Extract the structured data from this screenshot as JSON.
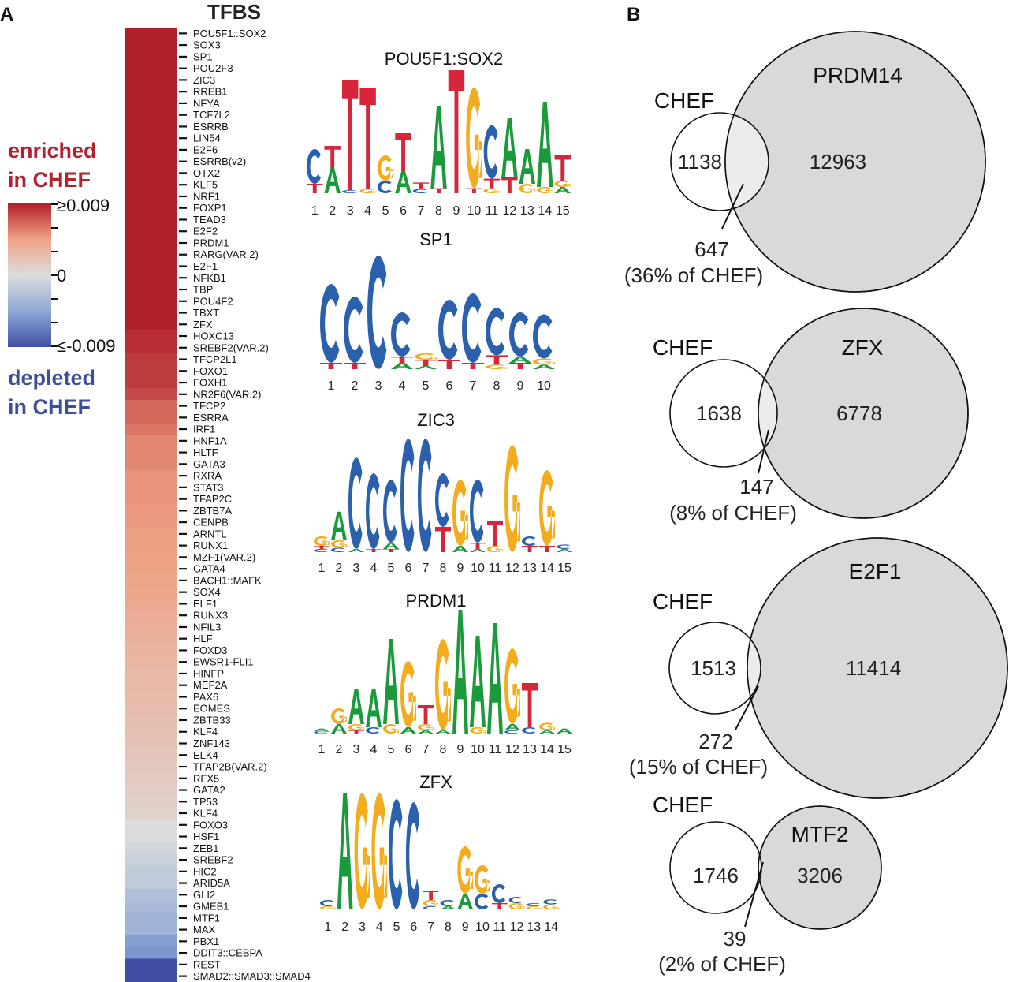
{
  "panel_a": {
    "label": "A",
    "heatmap_title": "TFBS",
    "legend": {
      "enriched_line1": "enriched",
      "enriched_line2": "in CHEF",
      "depleted_line1": "depleted",
      "depleted_line2": "in CHEF",
      "max_label": "≥0.009",
      "mid_label": "0",
      "min_label": "≤-0.009",
      "enriched_color": "#b22330",
      "depleted_color": "#3e4f96"
    }
  },
  "chart_data": {
    "type": "heatmap",
    "title": "TFBS",
    "value_range": [
      -0.009,
      0.009
    ],
    "colormap": [
      "#3f4fa3",
      "#8fa9d8",
      "#dcdcdc",
      "#efa385",
      "#b11f2a"
    ],
    "rows": [
      {
        "name": "POU5F1::SOX2",
        "value": 0.009
      },
      {
        "name": "SOX3",
        "value": 0.009
      },
      {
        "name": "SP1",
        "value": 0.009
      },
      {
        "name": "POU2F3",
        "value": 0.009
      },
      {
        "name": "ZIC3",
        "value": 0.009
      },
      {
        "name": "RREB1",
        "value": 0.009
      },
      {
        "name": "NFYA",
        "value": 0.009
      },
      {
        "name": "TCF7L2",
        "value": 0.009
      },
      {
        "name": "ESRRB",
        "value": 0.009
      },
      {
        "name": "LIN54",
        "value": 0.009
      },
      {
        "name": "E2F6",
        "value": 0.009
      },
      {
        "name": "ESRRB(v2)",
        "value": 0.009
      },
      {
        "name": "OTX2",
        "value": 0.009
      },
      {
        "name": "KLF5",
        "value": 0.009
      },
      {
        "name": "NRF1",
        "value": 0.009
      },
      {
        "name": "FOXP1",
        "value": 0.009
      },
      {
        "name": "TEAD3",
        "value": 0.009
      },
      {
        "name": "E2F2",
        "value": 0.009
      },
      {
        "name": "PRDM1",
        "value": 0.009
      },
      {
        "name": "RARG(VAR.2)",
        "value": 0.009
      },
      {
        "name": "E2F1",
        "value": 0.009
      },
      {
        "name": "NFKB1",
        "value": 0.009
      },
      {
        "name": "TBP",
        "value": 0.009
      },
      {
        "name": "POU4F2",
        "value": 0.009
      },
      {
        "name": "TBXT",
        "value": 0.009
      },
      {
        "name": "ZFX",
        "value": 0.009
      },
      {
        "name": "HOXC13",
        "value": 0.0085
      },
      {
        "name": "SREBF2(VAR.2)",
        "value": 0.0085
      },
      {
        "name": "TFCP2L1",
        "value": 0.008
      },
      {
        "name": "FOXO1",
        "value": 0.008
      },
      {
        "name": "FOXH1",
        "value": 0.008
      },
      {
        "name": "NR2F6(VAR.2)",
        "value": 0.0075
      },
      {
        "name": "TFCP2",
        "value": 0.0065
      },
      {
        "name": "ESRRA",
        "value": 0.0065
      },
      {
        "name": "IRF1",
        "value": 0.006
      },
      {
        "name": "HNF1A",
        "value": 0.0055
      },
      {
        "name": "HLTF",
        "value": 0.0055
      },
      {
        "name": "GATA3",
        "value": 0.0055
      },
      {
        "name": "RXRA",
        "value": 0.005
      },
      {
        "name": "STAT3",
        "value": 0.005
      },
      {
        "name": "TFAP2C",
        "value": 0.005
      },
      {
        "name": "ZBTB7A",
        "value": 0.0048
      },
      {
        "name": "CENPB",
        "value": 0.0048
      },
      {
        "name": "ARNTL",
        "value": 0.0046
      },
      {
        "name": "RUNX1",
        "value": 0.0046
      },
      {
        "name": "MZF1(VAR.2)",
        "value": 0.0045
      },
      {
        "name": "GATA4",
        "value": 0.0045
      },
      {
        "name": "BACH1::MAFK",
        "value": 0.0043
      },
      {
        "name": "SOX4",
        "value": 0.0042
      },
      {
        "name": "ELF1",
        "value": 0.004
      },
      {
        "name": "RUNX3",
        "value": 0.0038
      },
      {
        "name": "NFIL3",
        "value": 0.0036
      },
      {
        "name": "HLF",
        "value": 0.0034
      },
      {
        "name": "FOXD3",
        "value": 0.0032
      },
      {
        "name": "EWSR1-FLI1",
        "value": 0.003
      },
      {
        "name": "HINFP",
        "value": 0.0028
      },
      {
        "name": "MEF2A",
        "value": 0.0027
      },
      {
        "name": "PAX6",
        "value": 0.0026
      },
      {
        "name": "EOMES",
        "value": 0.0025
      },
      {
        "name": "ZBTB33",
        "value": 0.0024
      },
      {
        "name": "KLF4",
        "value": 0.0022
      },
      {
        "name": "ZNF143",
        "value": 0.002
      },
      {
        "name": "ELK4",
        "value": 0.0018
      },
      {
        "name": "TFAP2B(VAR.2)",
        "value": 0.0016
      },
      {
        "name": "RFX5",
        "value": 0.0014
      },
      {
        "name": "GATA2",
        "value": 0.0012
      },
      {
        "name": "TP53",
        "value": 0.001
      },
      {
        "name": "KLF4",
        "value": 0.0008
      },
      {
        "name": "FOXO3",
        "value": 0.0
      },
      {
        "name": "HSF1",
        "value": 0.0
      },
      {
        "name": "ZEB1",
        "value": -0.0005
      },
      {
        "name": "SREBF2",
        "value": -0.001
      },
      {
        "name": "HIC2",
        "value": -0.0015
      },
      {
        "name": "ARID5A",
        "value": -0.0015
      },
      {
        "name": "GLI2",
        "value": -0.0025
      },
      {
        "name": "GMEB1",
        "value": -0.003
      },
      {
        "name": "MTF1",
        "value": -0.0035
      },
      {
        "name": "MAX",
        "value": -0.0035
      },
      {
        "name": "PBX1",
        "value": -0.005
      },
      {
        "name": "DDIT3::CEBPA",
        "value": -0.0055
      },
      {
        "name": "REST",
        "value": -0.009
      },
      {
        "name": "SMAD2::SMAD3::SMAD4",
        "value": -0.009
      }
    ]
  },
  "logo_colors": {
    "A": "#1b9a3c",
    "C": "#2a60ac",
    "G": "#f2ac1e",
    "T": "#d7263a"
  },
  "logos": [
    {
      "title": "POU5F1:SOX2",
      "positions": [
        [
          [
            "C",
            0.55
          ],
          [
            "T",
            0.15
          ]
        ],
        [
          [
            "T",
            0.35
          ],
          [
            "A",
            0.4
          ]
        ],
        [
          [
            "T",
            1.75
          ],
          [
            "C",
            0.05
          ]
        ],
        [
          [
            "T",
            1.6
          ],
          [
            "G",
            0.07
          ]
        ],
        [
          [
            "G",
            0.4
          ],
          [
            "C",
            0.2
          ]
        ],
        [
          [
            "T",
            0.6
          ],
          [
            "A",
            0.35
          ]
        ],
        [
          [
            "T",
            0.1
          ],
          [
            "C",
            0.07
          ]
        ],
        [
          [
            "A",
            1.3
          ],
          [
            "T",
            0.08
          ]
        ],
        [
          [
            "T",
            1.95
          ]
        ],
        [
          [
            "G",
            1.6
          ],
          [
            "T",
            0.08
          ]
        ],
        [
          [
            "C",
            0.85
          ],
          [
            "T",
            0.15
          ],
          [
            "G",
            0.08
          ]
        ],
        [
          [
            "A",
            0.95
          ],
          [
            "T",
            0.25
          ]
        ],
        [
          [
            "A",
            0.55
          ],
          [
            "G",
            0.15
          ]
        ],
        [
          [
            "A",
            1.35
          ],
          [
            "G",
            0.1
          ]
        ],
        [
          [
            "T",
            0.4
          ],
          [
            "G",
            0.1
          ],
          [
            "A",
            0.1
          ]
        ]
      ]
    },
    {
      "title": "SP1",
      "positions": [
        [
          [
            "C",
            1.25
          ],
          [
            "T",
            0.1
          ]
        ],
        [
          [
            "C",
            1.05
          ],
          [
            "T",
            0.1
          ]
        ],
        [
          [
            "C",
            1.8
          ]
        ],
        [
          [
            "C",
            0.7
          ],
          [
            "T",
            0.1
          ],
          [
            "A",
            0.1
          ]
        ],
        [
          [
            "G",
            0.1
          ],
          [
            "T",
            0.1
          ],
          [
            "A",
            0.05
          ]
        ],
        [
          [
            "C",
            0.95
          ],
          [
            "T",
            0.15
          ]
        ],
        [
          [
            "C",
            1.1
          ],
          [
            "T",
            0.1
          ]
        ],
        [
          [
            "C",
            0.75
          ],
          [
            "T",
            0.15
          ],
          [
            "G",
            0.07
          ]
        ],
        [
          [
            "C",
            0.7
          ],
          [
            "A",
            0.1
          ],
          [
            "T",
            0.1
          ]
        ],
        [
          [
            "C",
            0.7
          ],
          [
            "G",
            0.1
          ],
          [
            "A",
            0.07
          ]
        ]
      ]
    },
    {
      "title": "ZIC3",
      "positions": [
        [
          [
            "G",
            0.15
          ],
          [
            "T",
            0.05
          ],
          [
            "C",
            0.05
          ]
        ],
        [
          [
            "A",
            0.45
          ],
          [
            "G",
            0.12
          ],
          [
            "C",
            0.07
          ]
        ],
        [
          [
            "C",
            1.45
          ],
          [
            "A",
            0.05
          ]
        ],
        [
          [
            "C",
            1.2
          ],
          [
            "T",
            0.05
          ]
        ],
        [
          [
            "C",
            1.0
          ],
          [
            "A",
            0.1
          ],
          [
            "T",
            0.05
          ]
        ],
        [
          [
            "C",
            1.8
          ]
        ],
        [
          [
            "C",
            1.8
          ]
        ],
        [
          [
            "C",
            0.85
          ],
          [
            "T",
            0.4
          ]
        ],
        [
          [
            "G",
            1.05
          ],
          [
            "A",
            0.1
          ]
        ],
        [
          [
            "C",
            1.0
          ],
          [
            "T",
            0.1
          ],
          [
            "A",
            0.05
          ]
        ],
        [
          [
            "T",
            0.4
          ],
          [
            "G",
            0.1
          ]
        ],
        [
          [
            "G",
            1.7
          ]
        ],
        [
          [
            "C",
            0.15
          ],
          [
            "T",
            0.1
          ]
        ],
        [
          [
            "G",
            1.2
          ],
          [
            "T",
            0.1
          ]
        ],
        [
          [
            "C",
            0.07
          ],
          [
            "A",
            0.05
          ]
        ]
      ]
    },
    {
      "title": "PRDM1",
      "positions": [
        [
          [
            "A",
            0.05
          ],
          [
            "C",
            0.03
          ]
        ],
        [
          [
            "G",
            0.25
          ],
          [
            "A",
            0.15
          ]
        ],
        [
          [
            "A",
            0.55
          ],
          [
            "G",
            0.1
          ],
          [
            "T",
            0.05
          ]
        ],
        [
          [
            "A",
            0.6
          ],
          [
            "C",
            0.1
          ]
        ],
        [
          [
            "A",
            1.35
          ],
          [
            "G",
            0.15
          ]
        ],
        [
          [
            "G",
            1.05
          ],
          [
            "A",
            0.1
          ]
        ],
        [
          [
            "T",
            0.3
          ],
          [
            "G",
            0.1
          ],
          [
            "A",
            0.05
          ]
        ],
        [
          [
            "G",
            1.45
          ],
          [
            "A",
            0.05
          ]
        ],
        [
          [
            "A",
            1.95
          ]
        ],
        [
          [
            "A",
            1.45
          ],
          [
            "G",
            0.1
          ]
        ],
        [
          [
            "A",
            1.75
          ]
        ],
        [
          [
            "G",
            1.2
          ],
          [
            "A",
            0.1
          ],
          [
            "C",
            0.05
          ]
        ],
        [
          [
            "T",
            0.7
          ],
          [
            "C",
            0.1
          ]
        ],
        [
          [
            "G",
            0.12
          ],
          [
            "A",
            0.05
          ]
        ],
        [
          [
            "A",
            0.08
          ]
        ]
      ]
    },
    {
      "title": "ZFX",
      "positions": [
        [
          [
            "C",
            0.1
          ],
          [
            "G",
            0.05
          ]
        ],
        [
          [
            "A",
            1.85
          ]
        ],
        [
          [
            "G",
            1.85
          ]
        ],
        [
          [
            "G",
            1.85
          ]
        ],
        [
          [
            "C",
            1.75
          ]
        ],
        [
          [
            "C",
            1.7
          ]
        ],
        [
          [
            "T",
            0.15
          ],
          [
            "G",
            0.1
          ],
          [
            "C",
            0.05
          ]
        ],
        [
          [
            "C",
            0.1
          ],
          [
            "A",
            0.05
          ]
        ],
        [
          [
            "G",
            0.75
          ],
          [
            "A",
            0.25
          ]
        ],
        [
          [
            "G",
            0.45
          ],
          [
            "C",
            0.25
          ]
        ],
        [
          [
            "C",
            0.3
          ],
          [
            "T",
            0.1
          ]
        ],
        [
          [
            "C",
            0.1
          ],
          [
            "G",
            0.1
          ]
        ],
        [
          [
            "C",
            0.05
          ],
          [
            "G",
            0.05
          ]
        ],
        [
          [
            "C",
            0.08
          ],
          [
            "G",
            0.08
          ]
        ]
      ]
    }
  ],
  "panel_b": {
    "label": "B",
    "venns": [
      {
        "left_label": "CHEF",
        "right_label": "PRDM14",
        "left_only": "1138",
        "right_only": "12963",
        "overlap": "647",
        "overlap_pct": "(36% of CHEF)"
      },
      {
        "left_label": "CHEF",
        "right_label": "ZFX",
        "left_only": "1638",
        "right_only": "6778",
        "overlap": "147",
        "overlap_pct": "(8% of CHEF)"
      },
      {
        "left_label": "CHEF",
        "right_label": "E2F1",
        "left_only": "1513",
        "right_only": "11414",
        "overlap": "272",
        "overlap_pct": "(15% of CHEF)"
      },
      {
        "left_label": "CHEF",
        "right_label": "MTF2",
        "left_only": "1746",
        "right_only": "3206",
        "overlap": "39",
        "overlap_pct": "(2% of CHEF)"
      }
    ],
    "fill_color": "#d9d9d9",
    "overlap_color": "#ececec"
  }
}
